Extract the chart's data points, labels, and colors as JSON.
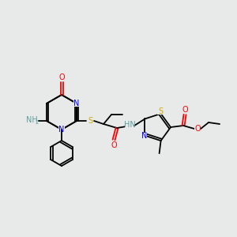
{
  "background_color": "#e8eaea",
  "atom_colors": {
    "N": "#0000ff",
    "O": "#ff0000",
    "S": "#ccaa00",
    "C": "#000000",
    "H": "#5f9ea0"
  },
  "lw": 1.3,
  "fs": 7.0,
  "ring_r": 22,
  "ph_r": 15
}
